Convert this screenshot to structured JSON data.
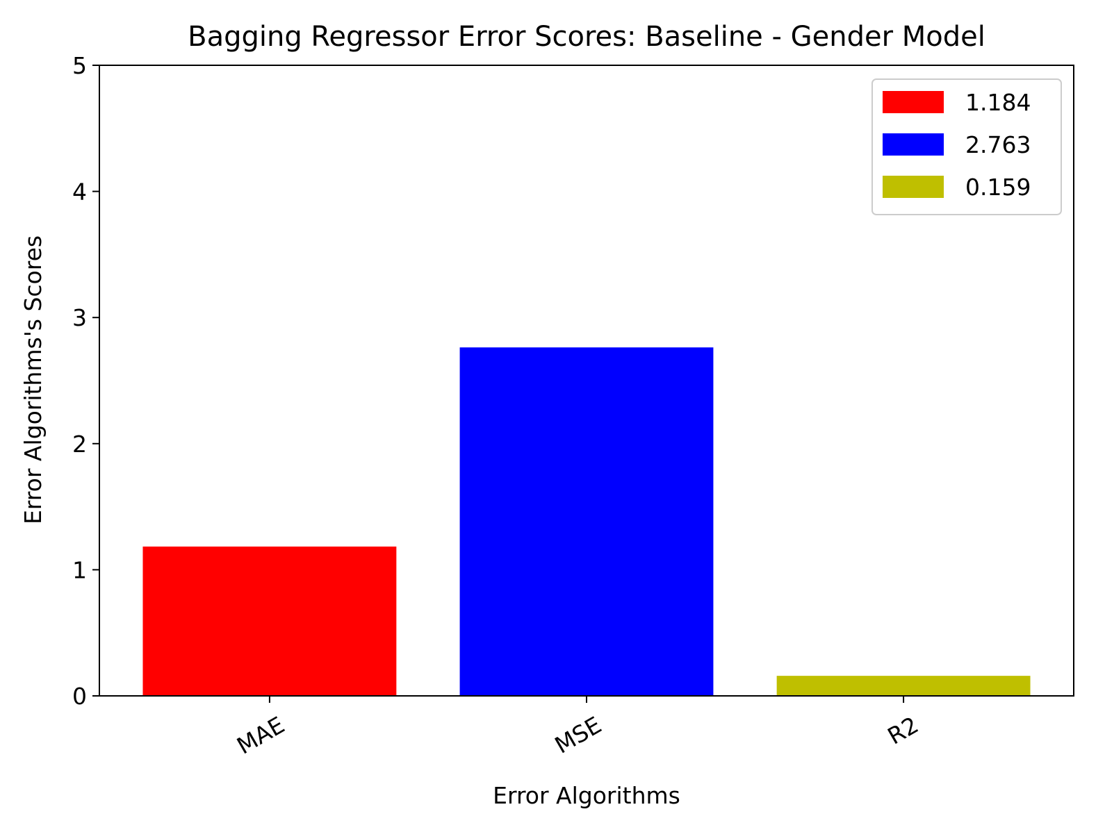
{
  "chart_data": {
    "type": "bar",
    "title": "Bagging Regressor Error Scores: Baseline - Gender Model",
    "xlabel": "Error Algorithms",
    "ylabel": "Error Algorithms's Scores",
    "categories": [
      "MAE",
      "MSE",
      "R2"
    ],
    "values": [
      1.184,
      2.763,
      0.159
    ],
    "colors": [
      "#ff0000",
      "#0000ff",
      "#bfbf00"
    ],
    "ylim": [
      0,
      5
    ],
    "yticks": [
      "0",
      "1",
      "2",
      "3",
      "4",
      "5"
    ],
    "xtick_rotation_deg": 30,
    "grid": false,
    "legend": {
      "placement": "top-right",
      "entries": [
        {
          "label": "1.184",
          "color": "#ff0000"
        },
        {
          "label": "2.763",
          "color": "#0000ff"
        },
        {
          "label": "0.159",
          "color": "#bfbf00"
        }
      ]
    }
  }
}
